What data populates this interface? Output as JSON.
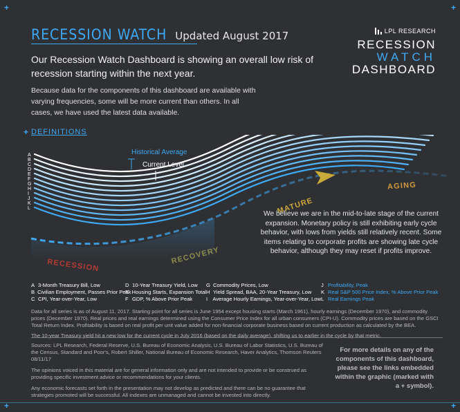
{
  "header": {
    "title": "RECESSION WATCH",
    "updated": "Updated August 2017",
    "headline": "Our Recession Watch Dashboard is showing an overall low risk of recession starting within the next year.",
    "intro": "Because data for the components of this dashboard are available with varying frequencies, some will be more current than others. In all cases, we have used the latest data available."
  },
  "brand": {
    "research": "LPL RESEARCH",
    "line1": "RECESSION",
    "line2": "WATCH",
    "line3": "DASHBOARD"
  },
  "corner_plus": "+",
  "definitions": {
    "plus": "+",
    "label": "DEFINITIONS"
  },
  "chart": {
    "letters": [
      "A",
      "B",
      "C",
      "D",
      "E",
      "F",
      "G",
      "H",
      "I",
      "J",
      "K",
      "L"
    ],
    "historical_average_label": "Historical Average",
    "current_level_label": "Current Level",
    "phases": [
      "RECESSION",
      "RECOVERY",
      "MATURE",
      "AGING"
    ],
    "phase_colors": [
      "#b73a35",
      "#8e8c4e",
      "#c9a93a",
      "#d39a3c"
    ],
    "accent": "#3ea9f5"
  },
  "description": "We believe we are in the mid-to-late stage of the current expansion. Monetary policy is still exhibiting early cycle behavior, with lows from yields still relatively recent. Some items relating to corporate profits are showing late cycle behavior, although they may reset if profits improve.",
  "legend": [
    [
      {
        "key": "A",
        "label": "3-Month Treasury Bill, Low",
        "blue": false
      },
      {
        "key": "B",
        "label": "Civilian Employment, Passes Prior Peak",
        "blue": false
      },
      {
        "key": "C",
        "label": "CPI, Year-over-Year, Low",
        "blue": false
      }
    ],
    [
      {
        "key": "D",
        "label": "10-Year Treasury Yield, Low",
        "blue": false
      },
      {
        "key": "E",
        "label": "Housing Starts, Expansion Total",
        "blue": false
      },
      {
        "key": "F",
        "label": "GDP, % Above Prior Peak",
        "blue": false
      }
    ],
    [
      {
        "key": "G",
        "label": "Commodity Prices, Low",
        "blue": false
      },
      {
        "key": "H",
        "label": "Yield Spread, BAA, 20-Year Treasury, Low",
        "blue": false
      },
      {
        "key": "I",
        "label": "Average Hourly Earnings, Year-over-Year, Low",
        "blue": false
      }
    ],
    [
      {
        "key": "J",
        "label": "Profitability, Peak",
        "blue": true
      },
      {
        "key": "K",
        "label": "Real S&P 500 Price Index, % Above Prior Peak",
        "blue": true
      },
      {
        "key": "L",
        "label": "Real Earnings Peak",
        "blue": true
      }
    ]
  ],
  "notes": {
    "note1": "Data for all series is as of August 11, 2017. Starting point for all series is June 1954 except housing starts (March 1961), hourly earnings (December 1970), and commodity prices (December 1970). Real prices and real earnings determined using the Consumer Price Index for all urban consumers (CPI-U). Commodity prices are based on the GSCI Total Return Index. Profitability is based on real profit per unit value added for non-financial corporate business based on current production as calculated by the BEA.",
    "note2": "The 10-year Treasury yield hit a new low for the current cycle in July 2016 (based on the daily average), shifting us to earlier in the cycle by that metric."
  },
  "sources": {
    "s1": "Sources: LPL Research, Federal Reserve, U.S. Bureau of Economic Analysis, U.S. Bureau of Labor Statistics, U.S. Bureau of the Census, Standard and Poor's, Robert Shiller, National Bureau of Economic Research, Haver Analytics, Thomson Reuters   08/11/17",
    "s2": "The opinions voiced in this material are for general information only and are not intended to provide or be construed as providing specific investment advice or recommendations for your clients.",
    "s3": "Any economic forecasts set forth in the presentation may not develop as predicted and there can be no guarantee that strategies promoted will be successful. All indexes are unmanaged and cannot be invested into directly."
  },
  "more_info": "For more details on any of the components of this dashboard, please see the links embedded within the graphic (marked with a + symbol)."
}
